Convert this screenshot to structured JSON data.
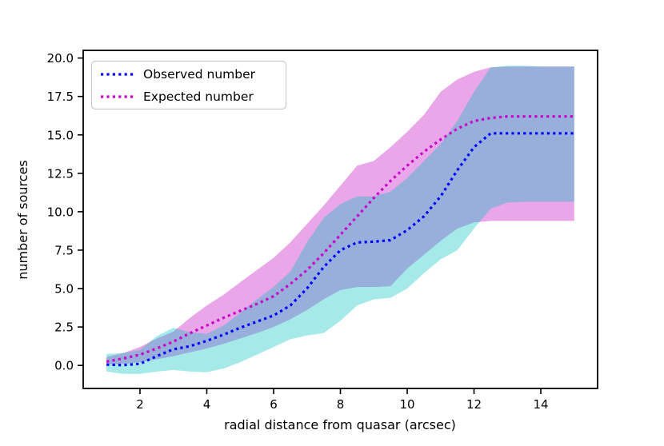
{
  "figure": {
    "background": "#ffffff"
  },
  "chart_data": {
    "type": "line",
    "title": "",
    "xlabel": "radial distance from quasar (arcsec)",
    "ylabel": "number of sources",
    "xlim": [
      0.3,
      15.7
    ],
    "ylim": [
      -1.5,
      20.5
    ],
    "grid": false,
    "legend_position": "upper left",
    "xtick_values": [
      2,
      4,
      6,
      8,
      10,
      12,
      14
    ],
    "xtick_labels": [
      "2",
      "4",
      "6",
      "8",
      "10",
      "12",
      "14"
    ],
    "ytick_values": [
      0,
      2.5,
      5,
      7.5,
      10,
      12.5,
      15,
      17.5,
      20
    ],
    "ytick_labels": [
      "0.0",
      "2.5",
      "5.0",
      "7.5",
      "10.0",
      "12.5",
      "15.0",
      "17.5",
      "20.0"
    ],
    "x": [
      1,
      1.5,
      2,
      2.5,
      3,
      3.5,
      4,
      4.5,
      5,
      5.5,
      6,
      6.5,
      7,
      7.5,
      8,
      8.5,
      9,
      9.5,
      10,
      10.5,
      11,
      11.5,
      12,
      12.5,
      13,
      13.5,
      14,
      14.5,
      15
    ],
    "series": [
      {
        "name": "Observed number",
        "color": "#0000ff",
        "linestyle": "dotted",
        "values": [
          0.05,
          0.02,
          0.1,
          0.6,
          1.05,
          1.25,
          1.6,
          2.0,
          2.45,
          2.85,
          3.25,
          3.9,
          5.0,
          6.4,
          7.5,
          8.0,
          8.05,
          8.15,
          8.8,
          9.7,
          11.0,
          12.7,
          14.2,
          15.1,
          15.1,
          15.1,
          15.1,
          15.1,
          15.1
        ]
      },
      {
        "name": "Expected number",
        "color": "#c800c8",
        "linestyle": "dotted",
        "values": [
          0.25,
          0.45,
          0.7,
          1.1,
          1.55,
          2.1,
          2.6,
          3.1,
          3.55,
          4.0,
          4.5,
          5.3,
          6.2,
          7.3,
          8.5,
          9.7,
          10.9,
          12.0,
          13.0,
          13.9,
          14.7,
          15.4,
          15.9,
          16.1,
          16.2,
          16.2,
          16.2,
          16.2,
          16.2
        ]
      }
    ],
    "bands": [
      {
        "name": "expected-uncertainty-band",
        "color": "#bf00bf",
        "alpha": 0.35,
        "lower": [
          0.05,
          0.1,
          0.2,
          0.4,
          0.6,
          0.85,
          1.1,
          1.4,
          1.75,
          2.1,
          2.5,
          3.0,
          3.6,
          4.3,
          4.9,
          5.1,
          5.1,
          5.15,
          6.3,
          7.2,
          8.1,
          8.9,
          9.3,
          9.4,
          9.4,
          9.4,
          9.4,
          9.4,
          9.4
        ],
        "upper": [
          0.55,
          0.8,
          1.2,
          1.75,
          2.2,
          3.1,
          3.9,
          4.6,
          5.4,
          6.2,
          7.0,
          8.0,
          9.2,
          10.4,
          11.7,
          13.0,
          13.3,
          14.2,
          15.2,
          16.3,
          17.8,
          18.6,
          19.1,
          19.4,
          19.45,
          19.45,
          19.45,
          19.45,
          19.45
        ]
      },
      {
        "name": "observed-uncertainty-band",
        "color": "#00bfbf",
        "alpha": 0.35,
        "lower": [
          -0.4,
          -0.55,
          -0.55,
          -0.4,
          -0.3,
          -0.4,
          -0.45,
          -0.2,
          0.2,
          0.7,
          1.2,
          1.7,
          1.95,
          2.1,
          2.9,
          3.9,
          4.3,
          4.4,
          5.0,
          6.0,
          6.9,
          7.5,
          8.9,
          10.2,
          10.6,
          10.65,
          10.65,
          10.65,
          10.65
        ],
        "upper": [
          0.75,
          0.8,
          1.0,
          1.9,
          2.45,
          2.15,
          2.05,
          2.6,
          3.4,
          4.3,
          5.1,
          6.1,
          8.0,
          9.6,
          10.5,
          11.0,
          11.0,
          11.3,
          12.2,
          13.3,
          14.4,
          15.9,
          17.8,
          19.4,
          19.5,
          19.5,
          19.45,
          19.45,
          19.45
        ]
      }
    ]
  },
  "legend": {
    "entries": [
      {
        "label": "Observed number"
      },
      {
        "label": "Expected number"
      }
    ]
  }
}
